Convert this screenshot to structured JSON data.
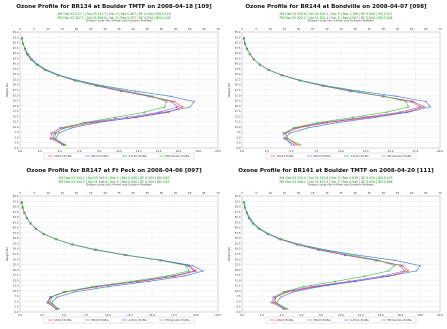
{
  "colors": {
    "am": "#e8433a",
    "pm": "#a052d0",
    "aprior": "#3a6fe0",
    "pmsol": "#3fbf3f",
    "grid": "#e4e4e4",
    "subtext": "#1a8f1a"
  },
  "chart_data": [
    {
      "type": "line",
      "title": "Ozone Profile for BR134 at Boulder TMTF on 2008-04-18 [109]",
      "subtitle_am": "AM Obs 03 312.7 | Sol 03 311.7 | Iter 3 | Res 0.487 | DF 0.006 | DN 0.118",
      "subtitle_pm": "PM Obs 03 307.1 | Sol 03 308.8 | Iter 3 | Res 0.357 | DF 0.004 | DN 0.108",
      "top_axis_label": "Dobson units (for A-Priori and Solution Profiles)",
      "xlabel": "10^17 (molecules/cm^2)",
      "ylabel": "Height km",
      "top_ticks": [
        "0",
        "5",
        "10",
        "15",
        "20",
        "25",
        "30",
        "35",
        "40",
        "45",
        "50",
        "55",
        "60",
        "65",
        "70"
      ],
      "bottom_ticks": [
        "0.0",
        "2.0",
        "4.0",
        "6.0",
        "8.0",
        "10.0",
        "12.0",
        "14.0",
        "16.0",
        "18.0",
        "20.0"
      ],
      "y_ticks": [
        "55.0",
        "52.5",
        "50.0",
        "47.5",
        "45.0",
        "42.5",
        "40.0",
        "37.5",
        "35.0",
        "32.5",
        "30.0",
        "27.5",
        "25.0",
        "22.5",
        "20.0",
        "17.5",
        "15.0",
        "12.5",
        "10.0",
        "7.5",
        "5.0",
        "2.5",
        "0.0"
      ],
      "xlim": [
        0,
        20
      ],
      "ylim": [
        0,
        55
      ],
      "heights": [
        1.5,
        4.5,
        7,
        9.5,
        12,
        14.5,
        17,
        19.5,
        22,
        24.5,
        27,
        29.5,
        32,
        34.5,
        37,
        39.5,
        42,
        44.5,
        47,
        49.5,
        52
      ],
      "series": [
        {
          "name": "AM-03 Profile",
          "key": "am",
          "values": [
            4.5,
            3.3,
            3.5,
            4.5,
            7.2,
            11.8,
            15.0,
            16.4,
            15.6,
            13.2,
            10.3,
            7.8,
            5.6,
            3.9,
            2.6,
            1.8,
            1.2,
            0.8,
            0.5,
            0.3,
            0.2
          ]
        },
        {
          "name": "PM-03 Profile",
          "key": "pm",
          "values": [
            4.3,
            3.1,
            3.2,
            4.1,
            6.6,
            10.8,
            14.1,
            15.9,
            15.3,
            13.0,
            10.2,
            7.7,
            5.5,
            3.8,
            2.5,
            1.7,
            1.1,
            0.7,
            0.5,
            0.3,
            0.2
          ]
        },
        {
          "name": "A-Priori Profile",
          "key": "aprior",
          "values": [
            4.4,
            3.6,
            3.9,
            5.2,
            7.8,
            11.5,
            14.7,
            17.2,
            17.6,
            15.2,
            11.6,
            8.4,
            5.9,
            4.0,
            2.7,
            1.8,
            1.2,
            0.8,
            0.5,
            0.3,
            0.2
          ]
        },
        {
          "name": "PM Solution Profile",
          "key": "pmsol",
          "values": [
            4.6,
            3.5,
            3.6,
            4.4,
            6.4,
            9.6,
            12.6,
            14.6,
            14.8,
            13.4,
            10.8,
            8.0,
            5.7,
            3.9,
            2.6,
            1.7,
            1.1,
            0.7,
            0.5,
            0.3,
            0.2
          ]
        }
      ],
      "legend": [
        "AM-03 Profile",
        "PM-03 Profile",
        "A-Priori Profile",
        "PM Solution Profile"
      ]
    },
    {
      "type": "line",
      "title": "Ozone Profile for BR144 at Bondville on 2008-04-07 [098]",
      "subtitle_am": "AM Obs 03 325.6 | Sol 03 325.1 | Iter 5 | Res 1.196 | DF 0.005 | DN 0.217",
      "subtitle_pm": "PM Obs 03 322.1 | Sol 03 320.1 | Iter 5 | Res 0.907 | DF 0.004 | DN 0.206",
      "top_axis_label": "Dobson units (for A-Priori and Solution Profiles)",
      "xlabel": "10^17 (molecules/cm^2)",
      "ylabel": "Height km",
      "top_ticks": [
        "0",
        "5",
        "10",
        "15",
        "20",
        "25",
        "30",
        "35",
        "40",
        "45",
        "50",
        "55",
        "60",
        "65",
        "70"
      ],
      "bottom_ticks": [
        "0.0",
        "2.5",
        "5.0",
        "7.5",
        "10.0",
        "12.5",
        "15.0",
        "17.5",
        "20.0"
      ],
      "y_ticks": [
        "55.0",
        "52.5",
        "50.0",
        "47.5",
        "45.0",
        "42.5",
        "40.0",
        "37.5",
        "35.0",
        "32.5",
        "30.0",
        "27.5",
        "25.0",
        "22.5",
        "20.0",
        "17.5",
        "15.0",
        "12.5",
        "10.0",
        "7.5",
        "5.0",
        "2.5",
        "0.0"
      ],
      "xlim": [
        0,
        20
      ],
      "ylim": [
        0,
        55
      ],
      "heights": [
        1.5,
        4.5,
        7,
        9.5,
        12,
        14.5,
        17,
        19.5,
        22,
        24.5,
        27,
        29.5,
        32,
        34.5,
        37,
        39.5,
        42,
        44.5,
        47,
        49.5,
        52
      ],
      "series": [
        {
          "name": "AM-03 Profile",
          "key": "am",
          "values": [
            5.6,
            4.6,
            4.4,
            5.6,
            8.6,
            12.8,
            16.6,
            18.4,
            17.3,
            14.3,
            11.0,
            8.2,
            5.8,
            4.0,
            2.7,
            1.8,
            1.2,
            0.8,
            0.5,
            0.3,
            0.2
          ]
        },
        {
          "name": "PM-03 Profile",
          "key": "pm",
          "values": [
            5.3,
            4.3,
            4.2,
            5.3,
            8.2,
            12.2,
            16.0,
            18.0,
            17.1,
            14.2,
            10.9,
            8.1,
            5.8,
            4.0,
            2.7,
            1.8,
            1.2,
            0.8,
            0.5,
            0.3,
            0.2
          ]
        },
        {
          "name": "A-Priori Profile",
          "key": "aprior",
          "values": [
            5.0,
            4.4,
            4.8,
            6.6,
            9.6,
            13.4,
            16.8,
            19.0,
            18.6,
            15.6,
            11.8,
            8.5,
            6.0,
            4.1,
            2.7,
            1.8,
            1.2,
            0.8,
            0.5,
            0.3,
            0.2
          ]
        },
        {
          "name": "PM Solution Profile",
          "key": "pmsol",
          "values": [
            5.9,
            4.6,
            4.4,
            5.2,
            7.6,
            11.2,
            14.6,
            16.8,
            16.6,
            14.4,
            11.2,
            8.3,
            5.9,
            4.1,
            2.7,
            1.8,
            1.2,
            0.8,
            0.5,
            0.3,
            0.2
          ]
        }
      ],
      "legend": [
        "AM-03 Profile",
        "PM-03 Profile",
        "A-Priori Profile",
        "PM Solution Profile"
      ]
    },
    {
      "type": "line",
      "title": "Ozone Profile for BR147 at Ft Peck on 2008-04-06 [097]",
      "subtitle_am": "AM Obs 03 343.1 | Sol 03 345.4 | Iter 3 | Res 0.508 | DF 0.004 | DN 0.83",
      "subtitle_pm": "PM Obs 03 345.5 | Sol 03 346.8 | Iter 3 | Res 0.444 | DF 0.004 | DN 0.81",
      "top_axis_label": "Dobson units (for A-Priori and Solution Profiles)",
      "xlabel": "10^17 (molecules/cm^2)",
      "ylabel": "Height km",
      "top_ticks": [
        "0",
        "5",
        "10",
        "15",
        "20",
        "25",
        "30",
        "35",
        "40",
        "45",
        "50",
        "55",
        "60",
        "65",
        "70"
      ],
      "bottom_ticks": [
        "0.0",
        "2.5",
        "5.0",
        "7.5",
        "10.0",
        "12.5",
        "15.0",
        "17.5",
        "20.0",
        "22.5"
      ],
      "y_ticks": [
        "55.0",
        "52.5",
        "50.0",
        "47.5",
        "45.0",
        "42.5",
        "40.0",
        "37.5",
        "35.0",
        "32.5",
        "30.0",
        "27.5",
        "25.0",
        "22.5",
        "20.0",
        "17.5",
        "15.0",
        "12.5",
        "10.0",
        "7.5",
        "5.0",
        "2.5",
        "0.0"
      ],
      "xlim": [
        0,
        22.5
      ],
      "ylim": [
        0,
        55
      ],
      "heights": [
        1.5,
        4.5,
        7,
        9.5,
        12,
        14.5,
        17,
        19.5,
        22,
        24.5,
        27,
        29.5,
        32,
        34.5,
        37,
        39.5,
        42,
        44.5,
        47,
        49.5,
        52
      ],
      "series": [
        {
          "name": "AM-03 Profile",
          "key": "am",
          "values": [
            4.2,
            3.2,
            3.5,
            5.2,
            8.8,
            13.6,
            17.6,
            20.0,
            19.2,
            16.0,
            12.0,
            8.6,
            6.0,
            4.1,
            2.7,
            1.8,
            1.2,
            0.8,
            0.5,
            0.3,
            0.2
          ]
        },
        {
          "name": "PM-03 Profile",
          "key": "pm",
          "values": [
            4.1,
            3.1,
            3.4,
            5.0,
            8.6,
            13.3,
            17.3,
            19.8,
            19.1,
            15.9,
            11.9,
            8.5,
            5.9,
            4.1,
            2.7,
            1.8,
            1.2,
            0.8,
            0.5,
            0.3,
            0.2
          ]
        },
        {
          "name": "A-Priori Profile",
          "key": "aprior",
          "values": [
            4.3,
            3.6,
            4.2,
            6.2,
            10.0,
            14.6,
            18.6,
            20.8,
            19.6,
            16.2,
            12.1,
            8.7,
            6.0,
            4.1,
            2.7,
            1.8,
            1.2,
            0.8,
            0.5,
            0.3,
            0.2
          ]
        },
        {
          "name": "PM Solution Profile",
          "key": "pmsol",
          "values": [
            4.4,
            3.4,
            3.6,
            5.0,
            8.2,
            12.6,
            16.6,
            19.2,
            18.9,
            16.0,
            12.1,
            8.7,
            6.0,
            4.1,
            2.7,
            1.8,
            1.2,
            0.8,
            0.5,
            0.3,
            0.2
          ]
        }
      ],
      "legend": [
        "AM-03 Profile",
        "PM-03 Profile",
        "A-Priori Profile",
        "PM Solution Profile"
      ]
    },
    {
      "type": "line",
      "title": "Ozone Profile for BR141 at Boulder TMTF on 2008-04-20 [111]",
      "subtitle_am": "AM Obs 03 315.4 | Sol 03 312.6 | Iter 3 | Res 0.636 | DF 0.005 | DN 0.103",
      "subtitle_pm": "PM Obs 03 308.1 | Sol 03 307.5 | Iter 3 | Res 0.560 | DF 0.004 | DN 0.098",
      "top_axis_label": "Dobson units (for A-Priori and Solution Profiles)",
      "xlabel": "10^17 (molecules/cm^2)",
      "ylabel": "Height km",
      "top_ticks": [
        "0",
        "5",
        "10",
        "15",
        "20",
        "25",
        "30",
        "35",
        "40",
        "45",
        "50",
        "55",
        "60",
        "65",
        "70"
      ],
      "bottom_ticks": [
        "0.0",
        "2.0",
        "4.0",
        "6.0",
        "8.0",
        "10.0",
        "12.0",
        "14.0",
        "16.0",
        "18.0",
        "20.0"
      ],
      "y_ticks": [
        "55.0",
        "52.5",
        "50.0",
        "47.5",
        "45.0",
        "42.5",
        "40.0",
        "37.5",
        "35.0",
        "32.5",
        "30.0",
        "27.5",
        "25.0",
        "22.5",
        "20.0",
        "17.5",
        "15.0",
        "12.5",
        "10.0",
        "7.5",
        "5.0",
        "2.5",
        "0.0"
      ],
      "xlim": [
        0,
        20
      ],
      "ylim": [
        0,
        55
      ],
      "heights": [
        1.5,
        4.5,
        7,
        9.5,
        12,
        14.5,
        17,
        19.5,
        22,
        24.5,
        27,
        29.5,
        32,
        34.5,
        37,
        39.5,
        42,
        44.5,
        47,
        49.5,
        52
      ],
      "series": [
        {
          "name": "AM-03 Profile",
          "key": "am",
          "values": [
            4.4,
            3.2,
            3.4,
            4.6,
            7.4,
            11.4,
            14.8,
            16.8,
            16.2,
            13.6,
            10.4,
            7.8,
            5.6,
            3.9,
            2.6,
            1.7,
            1.1,
            0.7,
            0.5,
            0.3,
            0.2
          ]
        },
        {
          "name": "PM-03 Profile",
          "key": "pm",
          "values": [
            4.2,
            3.0,
            3.2,
            4.3,
            7.0,
            10.8,
            14.2,
            16.4,
            16.0,
            13.5,
            10.4,
            7.7,
            5.5,
            3.8,
            2.6,
            1.7,
            1.1,
            0.7,
            0.5,
            0.3,
            0.2
          ]
        },
        {
          "name": "A-Priori Profile",
          "key": "aprior",
          "values": [
            4.3,
            3.5,
            3.9,
            5.2,
            7.8,
            11.4,
            14.8,
            17.6,
            18.0,
            15.4,
            11.6,
            8.4,
            5.9,
            4.0,
            2.7,
            1.8,
            1.2,
            0.8,
            0.5,
            0.3,
            0.2
          ]
        },
        {
          "name": "PM Solution Profile",
          "key": "pmsol",
          "values": [
            4.6,
            3.4,
            3.4,
            4.2,
            6.2,
            9.4,
            12.4,
            14.8,
            15.4,
            13.8,
            11.0,
            8.1,
            5.8,
            4.0,
            2.6,
            1.7,
            1.1,
            0.7,
            0.5,
            0.3,
            0.2
          ]
        }
      ],
      "legend": [
        "AM-03 Profile",
        "PM-03 Profile",
        "A-Priori Profile",
        "PM Solution Profile"
      ]
    }
  ]
}
